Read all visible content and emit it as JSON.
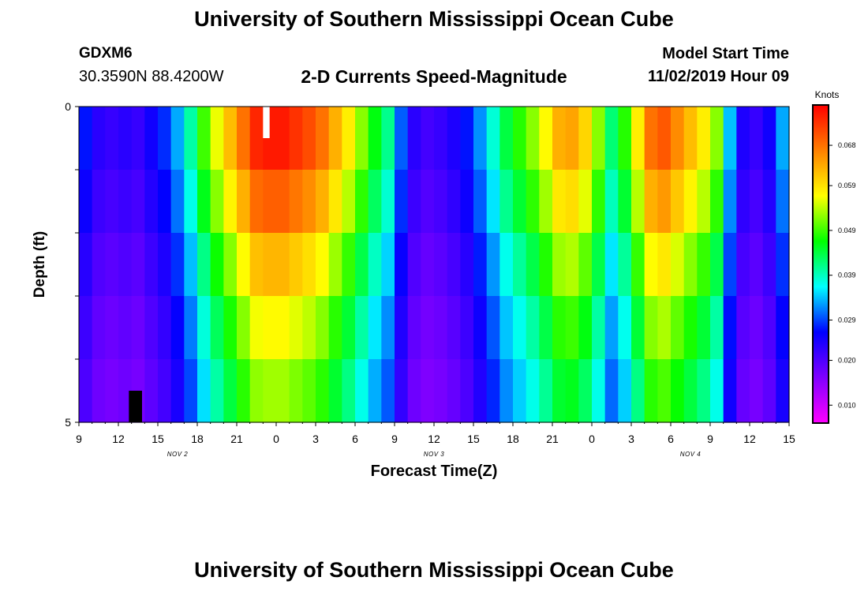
{
  "header": {
    "title": "University of Southern Mississippi Ocean Cube",
    "station": "GDXM6",
    "coords": "30.3590N 88.4200W",
    "plot_title": "2-D Currents Speed-Magnitude",
    "model_start_label": "Model Start Time",
    "model_start_value": "11/02/2019 Hour 09"
  },
  "footer": {
    "title": "University of Southern Mississippi Ocean Cube"
  },
  "chart_data": {
    "type": "heatmap",
    "title": "2-D Currents Speed-Magnitude",
    "xlabel": "Forecast Time(Z)",
    "ylabel": "Depth (ft)",
    "ylim": [
      0,
      5
    ],
    "y_ticks": [
      "0",
      "5"
    ],
    "x_tick_labels": [
      "9",
      "12",
      "15",
      "18",
      "21",
      "0",
      "3",
      "6",
      "9",
      "12",
      "15",
      "18",
      "21",
      "0",
      "3",
      "6",
      "9",
      "12",
      "15"
    ],
    "date_labels": [
      {
        "label": "NOV 2",
        "at_hour": 7.5
      },
      {
        "label": "NOV 3",
        "at_hour": 27
      },
      {
        "label": "NOV 4",
        "at_hour": 46.5
      }
    ],
    "x_start_label": "11/02/2019 09Z",
    "x_range_hours": [
      0,
      54
    ],
    "depth_bands": 5,
    "missing_color": "#ffffff",
    "colorbar": {
      "units": "Knots",
      "min": 0.006,
      "max": 0.077,
      "tick_values": [
        "0.010",
        "0.020",
        "0.029",
        "0.039",
        "0.049",
        "0.059",
        "0.068"
      ],
      "colormap": [
        "#ff00ff",
        "#8000ff",
        "#0000ff",
        "#00ffff",
        "#00ff00",
        "#ffff00",
        "#ff8000",
        "#ff0000"
      ]
    },
    "speed_profile_knots": [
      {
        "hour": 0,
        "value": 0.027
      },
      {
        "hour": 1,
        "value": 0.023
      },
      {
        "hour": 2,
        "value": 0.022
      },
      {
        "hour": 3,
        "value": 0.023
      },
      {
        "hour": 4,
        "value": 0.022
      },
      {
        "hour": 5,
        "value": 0.025
      },
      {
        "hour": 6,
        "value": 0.028
      },
      {
        "hour": 7,
        "value": 0.033
      },
      {
        "hour": 8,
        "value": 0.04
      },
      {
        "hour": 9,
        "value": 0.049
      },
      {
        "hour": 10,
        "value": 0.056
      },
      {
        "hour": 11,
        "value": 0.062
      },
      {
        "hour": 12,
        "value": 0.068
      },
      {
        "hour": 13,
        "value": 0.074
      },
      {
        "hour": 14,
        "value": 0.075
      },
      {
        "hour": 15,
        "value": 0.075
      },
      {
        "hour": 16,
        "value": 0.073
      },
      {
        "hour": 17,
        "value": 0.071
      },
      {
        "hour": 18,
        "value": 0.068
      },
      {
        "hour": 19,
        "value": 0.063
      },
      {
        "hour": 20,
        "value": 0.058
      },
      {
        "hour": 21,
        "value": 0.052
      },
      {
        "hour": 22,
        "value": 0.046
      },
      {
        "hour": 23,
        "value": 0.041
      },
      {
        "hour": 24,
        "value": 0.03
      },
      {
        "hour": 25,
        "value": 0.023
      },
      {
        "hour": 26,
        "value": 0.021
      },
      {
        "hour": 27,
        "value": 0.022
      },
      {
        "hour": 28,
        "value": 0.024
      },
      {
        "hour": 29,
        "value": 0.027
      },
      {
        "hour": 30,
        "value": 0.032
      },
      {
        "hour": 31,
        "value": 0.038
      },
      {
        "hour": 32,
        "value": 0.044
      },
      {
        "hour": 33,
        "value": 0.048
      },
      {
        "hour": 34,
        "value": 0.052
      },
      {
        "hour": 35,
        "value": 0.057
      },
      {
        "hour": 36,
        "value": 0.063
      },
      {
        "hour": 37,
        "value": 0.064
      },
      {
        "hour": 38,
        "value": 0.06
      },
      {
        "hour": 39,
        "value": 0.052
      },
      {
        "hour": 40,
        "value": 0.042
      },
      {
        "hour": 41,
        "value": 0.048
      },
      {
        "hour": 42,
        "value": 0.058
      },
      {
        "hour": 43,
        "value": 0.068
      },
      {
        "hour": 44,
        "value": 0.07
      },
      {
        "hour": 45,
        "value": 0.066
      },
      {
        "hour": 46,
        "value": 0.062
      },
      {
        "hour": 47,
        "value": 0.058
      },
      {
        "hour": 48,
        "value": 0.052
      },
      {
        "hour": 49,
        "value": 0.034
      },
      {
        "hour": 50,
        "value": 0.024
      },
      {
        "hour": 51,
        "value": 0.022
      },
      {
        "hour": 52,
        "value": 0.025
      },
      {
        "hour": 53,
        "value": 0.033
      },
      {
        "hour": 54,
        "value": 0.046
      }
    ],
    "depth_factor_by_band": [
      1.0,
      0.92,
      0.82,
      0.74,
      0.68
    ],
    "missing_cells": [
      {
        "hour_start": 14,
        "hour_end": 14.5,
        "band": 0,
        "color": "#ffffff"
      },
      {
        "hour_start": 3.8,
        "hour_end": 4.8,
        "band": 4,
        "color": "#000000"
      }
    ]
  }
}
